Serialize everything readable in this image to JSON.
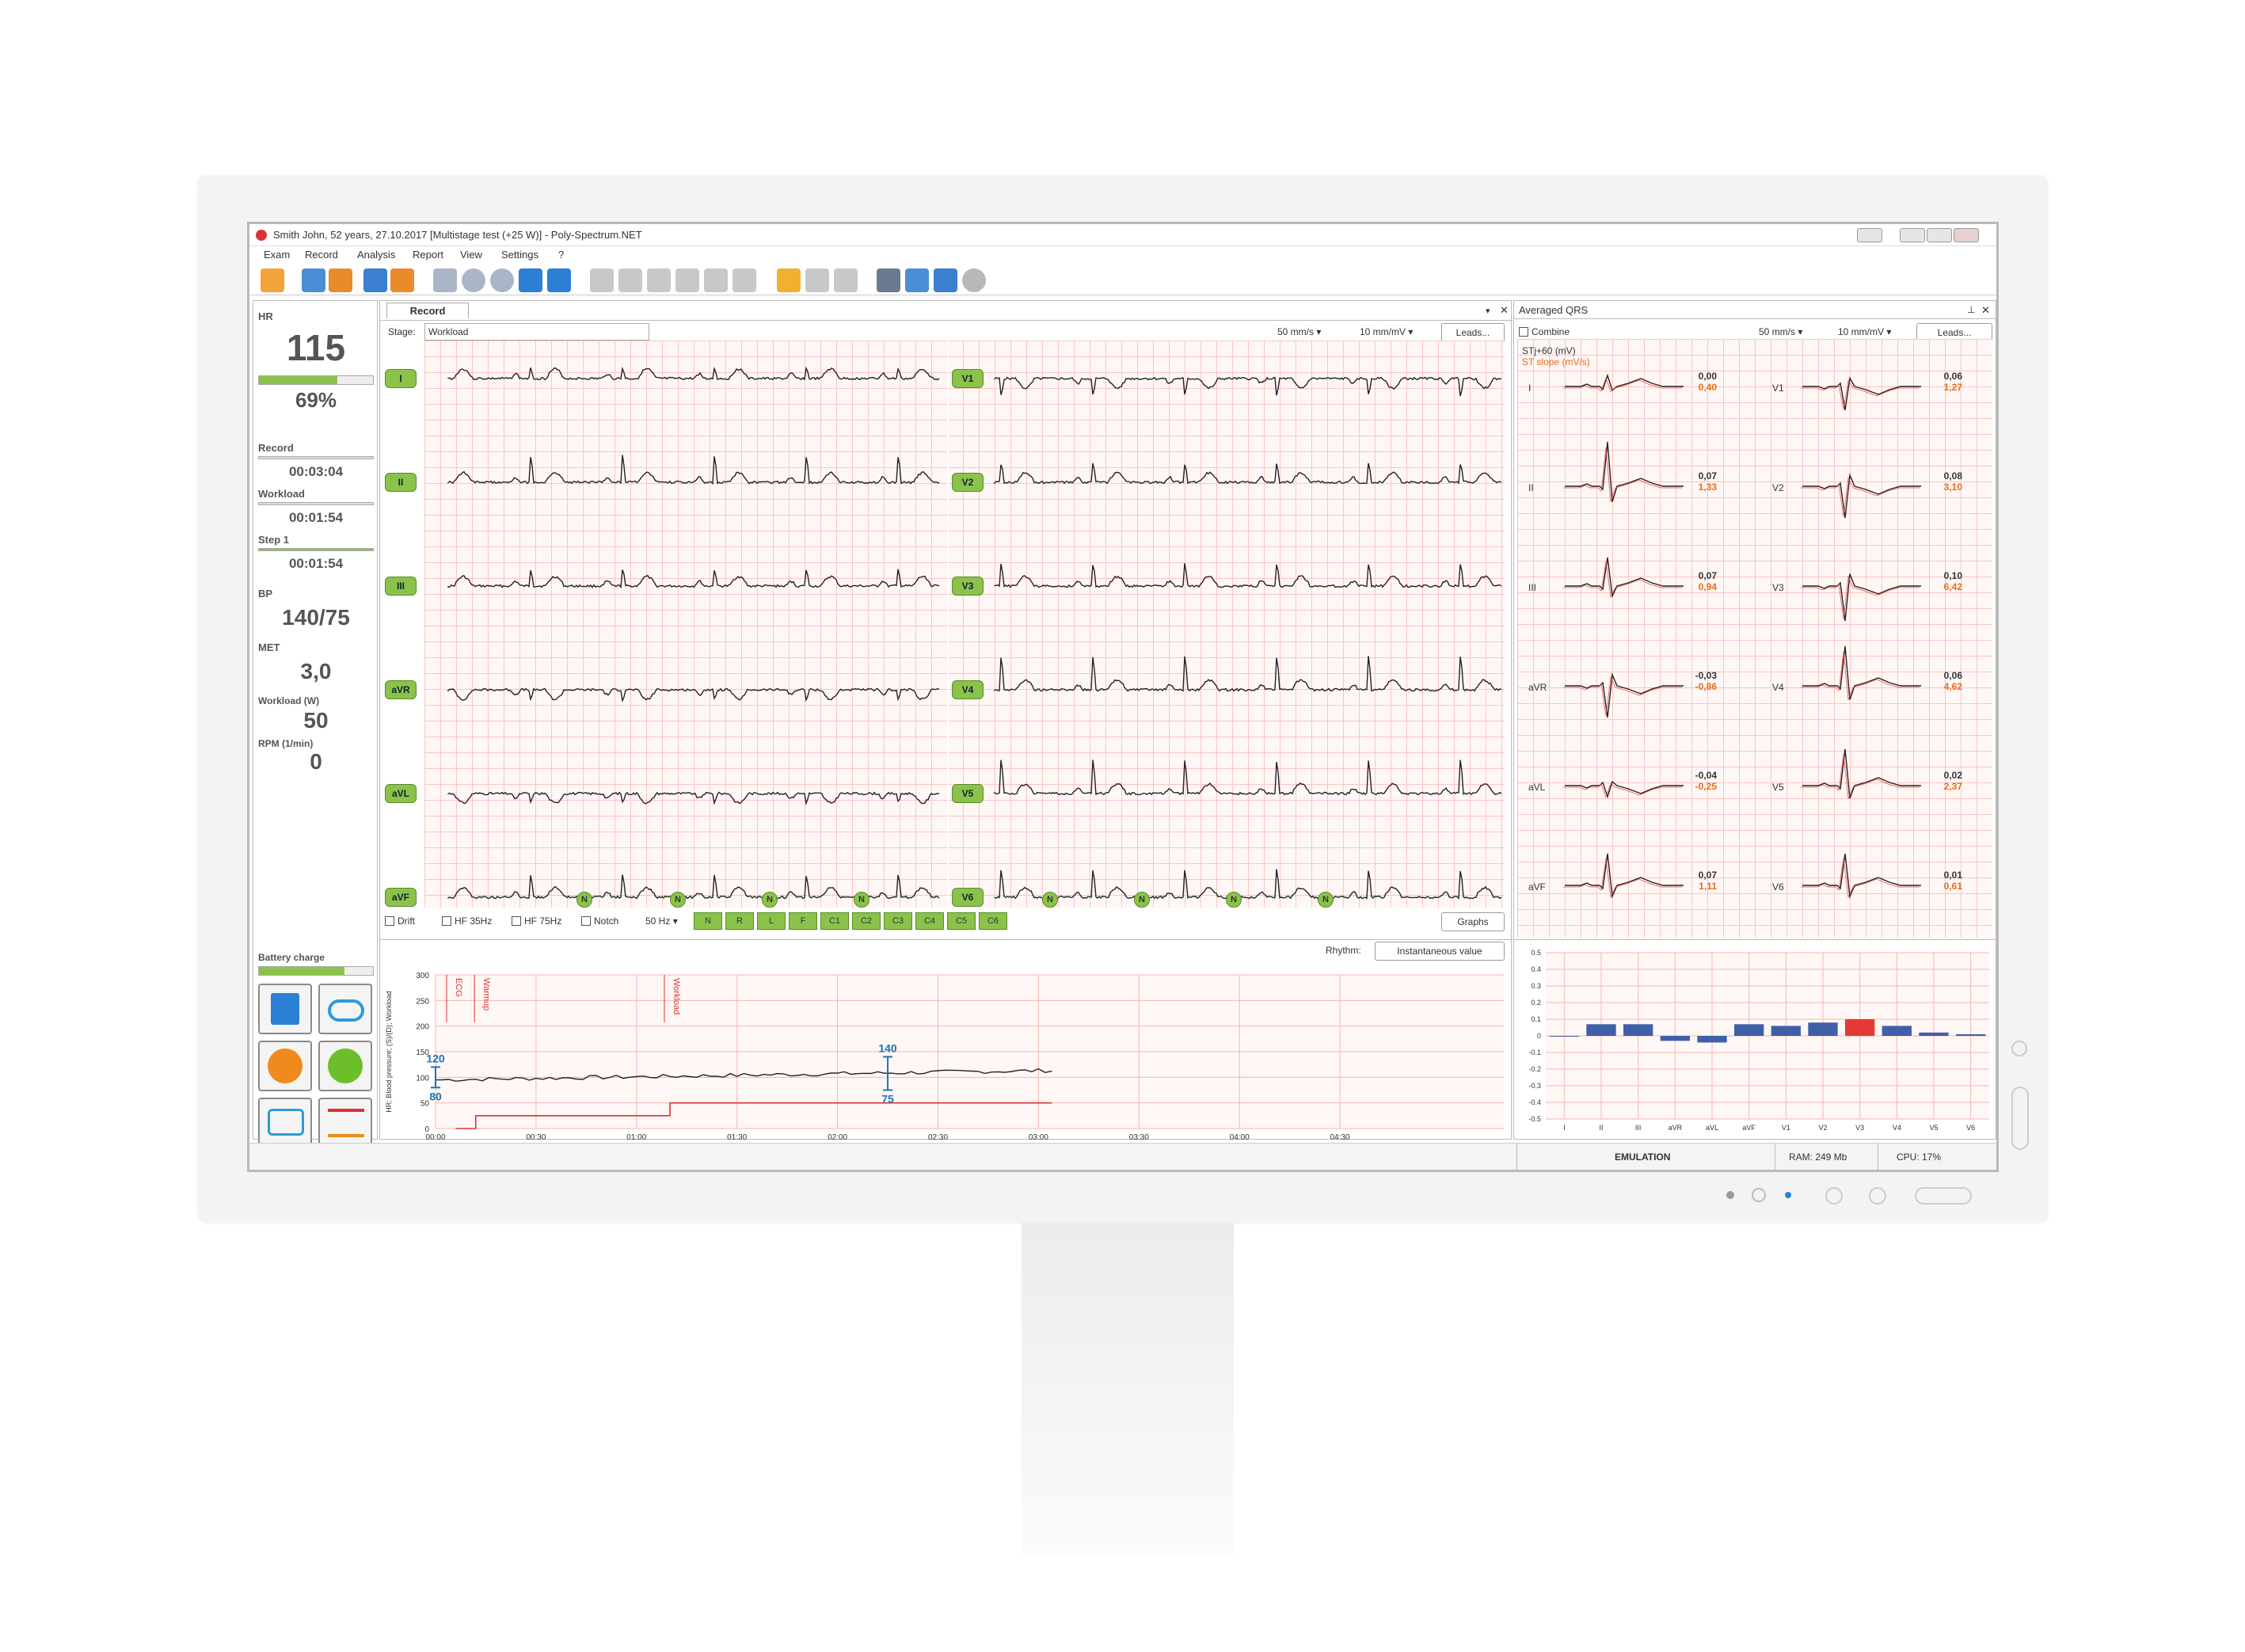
{
  "window": {
    "title": "Smith John, 52 years, 27.10.2017 [Multistage test (+25 W)] - Poly-Spectrum.NET"
  },
  "menu": [
    "Exam",
    "Record",
    "Analysis",
    "Report",
    "View",
    "Settings",
    "?"
  ],
  "record_tab": {
    "label": "Record"
  },
  "vitals": {
    "hr_label": "HR",
    "hr_value": "115",
    "hr_percent": "69%",
    "hr_fill": 0.69,
    "record_label": "Record",
    "record_time": "00:03:04",
    "workload_label": "Workload",
    "workload_time": "00:01:54",
    "step_label": "Step 1",
    "step_time": "00:01:54",
    "bp_label": "BP",
    "bp_value": "140/75",
    "met_label": "MET",
    "met_value": "3,0",
    "workload_w_label": "Workload (W)",
    "workload_w_value": "50",
    "rpm_label": "RPM (1/min)",
    "rpm_value": "0",
    "battery_label": "Battery charge",
    "battery_fill": 0.75
  },
  "ecg_panel": {
    "stage_label": "Stage:",
    "stage_value": "Workload",
    "speed": "50 mm/s",
    "gain": "10 mm/mV",
    "leads_button": "Leads...",
    "left_leads": [
      "I",
      "II",
      "III",
      "aVR",
      "aVL",
      "aVF"
    ],
    "right_leads": [
      "V1",
      "V2",
      "V3",
      "V4",
      "V5",
      "V6"
    ],
    "beat_marker": "N",
    "filters": [
      "Drift",
      "HF 35Hz",
      "HF 75Hz",
      "Notch"
    ],
    "mains": "50 Hz",
    "channels": [
      "N",
      "R",
      "L",
      "F",
      "C1",
      "C2",
      "C3",
      "C4",
      "C5",
      "C6"
    ],
    "graphs_button": "Graphs"
  },
  "trend": {
    "rhythm_label": "Rhythm:",
    "rhythm_value": "Instantaneous value",
    "ylabel": "HR; Blood pressure; (S)/(D); Workload",
    "yticks": [
      "300",
      "250",
      "200",
      "150",
      "100",
      "50",
      "0"
    ],
    "xticks": [
      "00:00",
      "00:30",
      "01:00",
      "01:30",
      "02:00",
      "02:30",
      "03:00",
      "03:30",
      "04:00",
      "04:30"
    ],
    "events": [
      "ECG",
      "Warmup",
      "Workload"
    ],
    "bp1_sys": "120",
    "bp1_dia": "80",
    "bp2_sys": "140",
    "bp2_dia": "75"
  },
  "averaged_qrs": {
    "title": "Averaged QRS",
    "combine": "Combine",
    "speed": "50 mm/s",
    "gain": "10 mm/mV",
    "leads_button": "Leads...",
    "legend_stj": "STj+60 (mV)",
    "legend_slope": "ST slope (mV/s)",
    "leads": [
      {
        "name": "I",
        "st": "0,00",
        "slope": "0,40"
      },
      {
        "name": "II",
        "st": "0,07",
        "slope": "1,33"
      },
      {
        "name": "III",
        "st": "0,07",
        "slope": "0,94"
      },
      {
        "name": "aVR",
        "st": "-0,03",
        "slope": "-0,86"
      },
      {
        "name": "aVL",
        "st": "-0,04",
        "slope": "-0,25"
      },
      {
        "name": "aVF",
        "st": "0,07",
        "slope": "1,11"
      },
      {
        "name": "V1",
        "st": "0,06",
        "slope": "1,27"
      },
      {
        "name": "V2",
        "st": "0,08",
        "slope": "3,10"
      },
      {
        "name": "V3",
        "st": "0,10",
        "slope": "6,42"
      },
      {
        "name": "V4",
        "st": "0,06",
        "slope": "4,62"
      },
      {
        "name": "V5",
        "st": "0,02",
        "slope": "2,37"
      },
      {
        "name": "V6",
        "st": "0,01",
        "slope": "0,61"
      }
    ]
  },
  "chart_data": {
    "type": "bar",
    "categories": [
      "I",
      "II",
      "III",
      "aVR",
      "aVL",
      "aVF",
      "V1",
      "V2",
      "V3",
      "V4",
      "V5",
      "V6"
    ],
    "values": [
      0.0,
      0.07,
      0.07,
      -0.03,
      -0.04,
      0.07,
      0.06,
      0.08,
      0.1,
      0.06,
      0.02,
      0.01
    ],
    "yticks": [
      "0.5",
      "0.4",
      "0.3",
      "0.2",
      "0.1",
      "0",
      "-0.1",
      "-0.2",
      "-0.3",
      "-0.4",
      "-0.5"
    ],
    "ylim": [
      -0.5,
      0.5
    ],
    "highlight_index": 8,
    "colors": {
      "bar": "#3f5fa8",
      "highlight": "#e53935"
    }
  },
  "status": {
    "mode": "EMULATION",
    "ram": "RAM: 249 Mb",
    "cpu": "CPU: 17%"
  }
}
